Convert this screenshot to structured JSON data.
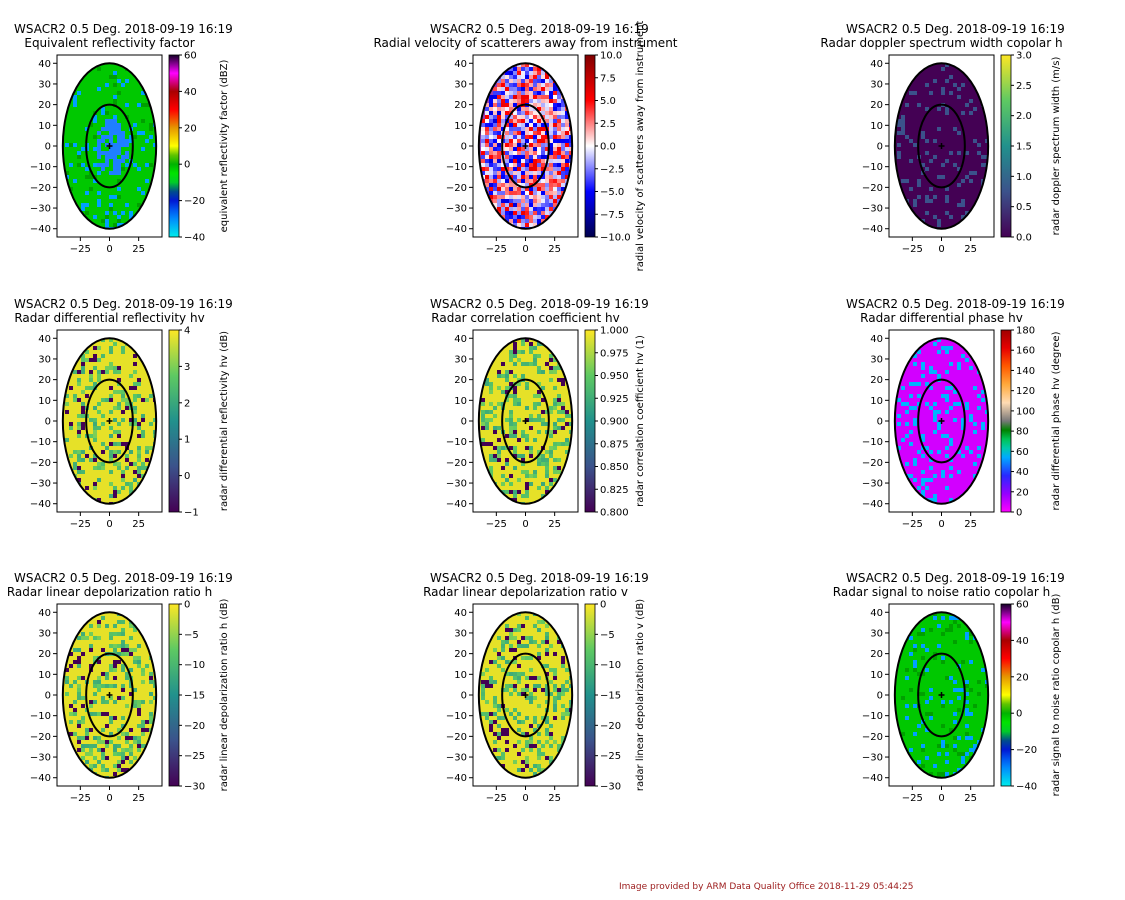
{
  "footer": {
    "credit": "Image provided by ARM Data Quality Office 2018-11-29 05:44:25"
  },
  "chart_data": [
    {
      "type": "heatmap",
      "title": "WSACR2 0.5 Deg. 2018-09-19 16:19",
      "subtitle": "Equivalent reflectivity factor",
      "xticks": [
        -25,
        0,
        25
      ],
      "yticks": [
        -40,
        -30,
        -20,
        -10,
        0,
        10,
        20,
        30,
        40
      ],
      "xlim": [
        -45,
        45
      ],
      "ylim": [
        -44,
        44
      ],
      "cbar_ticks": [
        -40,
        -20,
        0,
        20,
        40,
        60
      ],
      "cbar_range": [
        -40,
        60
      ],
      "cbar_label": "equivalent reflectivity factor (dBZ)",
      "colormap": "nws",
      "center_color": "#1f9fff",
      "field_color": "#00c800"
    },
    {
      "type": "heatmap",
      "title": "WSACR2 0.5 Deg. 2018-09-19 16:19",
      "subtitle": "Radial velocity of scatterers away from instrument",
      "xticks": [
        -25,
        0,
        25
      ],
      "yticks": [
        -40,
        -30,
        -20,
        -10,
        0,
        10,
        20,
        30,
        40
      ],
      "xlim": [
        -45,
        45
      ],
      "ylim": [
        -44,
        44
      ],
      "cbar_ticks": [
        -10.0,
        -7.5,
        -5.0,
        -2.5,
        0.0,
        2.5,
        5.0,
        7.5,
        10.0
      ],
      "cbar_range": [
        -10,
        10
      ],
      "cbar_label": "radial velocity of scatterers away from instrument",
      "colormap": "seismic"
    },
    {
      "type": "heatmap",
      "title": "WSACR2 0.5 Deg. 2018-09-19 16:19",
      "subtitle": "Radar doppler spectrum width copolar h",
      "xticks": [
        -25,
        0,
        25
      ],
      "yticks": [
        -40,
        -30,
        -20,
        -10,
        0,
        10,
        20,
        30,
        40
      ],
      "xlim": [
        -45,
        45
      ],
      "ylim": [
        -44,
        44
      ],
      "cbar_ticks": [
        0.0,
        0.5,
        1.0,
        1.5,
        2.0,
        2.5,
        3.0
      ],
      "cbar_range": [
        0,
        3
      ],
      "cbar_label": "radar doppler spectrum width (m/s)",
      "colormap": "viridis"
    },
    {
      "type": "heatmap",
      "title": "WSACR2 0.5 Deg. 2018-09-19 16:19",
      "subtitle": "Radar differential reflectivity hv",
      "xticks": [
        -25,
        0,
        25
      ],
      "yticks": [
        -40,
        -30,
        -20,
        -10,
        0,
        10,
        20,
        30,
        40
      ],
      "xlim": [
        -45,
        45
      ],
      "ylim": [
        -44,
        44
      ],
      "cbar_ticks": [
        -1,
        0,
        1,
        2,
        3,
        4
      ],
      "cbar_range": [
        -1,
        4
      ],
      "cbar_label": "radar differential reflectivity hv (dB)",
      "colormap": "viridis"
    },
    {
      "type": "heatmap",
      "title": "WSACR2 0.5 Deg. 2018-09-19 16:19",
      "subtitle": "Radar correlation coefficient hv",
      "xticks": [
        -25,
        0,
        25
      ],
      "yticks": [
        -40,
        -30,
        -20,
        -10,
        0,
        10,
        20,
        30,
        40
      ],
      "xlim": [
        -45,
        45
      ],
      "ylim": [
        -44,
        44
      ],
      "cbar_ticks": [
        0.8,
        0.825,
        0.85,
        0.875,
        0.9,
        0.925,
        0.95,
        0.975,
        1.0
      ],
      "cbar_range": [
        0.8,
        1.0
      ],
      "cbar_label": "radar correlation coefficient hv (1)",
      "colormap": "viridis"
    },
    {
      "type": "heatmap",
      "title": "WSACR2 0.5 Deg. 2018-09-19 16:19",
      "subtitle": "Radar differential phase hv",
      "xticks": [
        -25,
        0,
        25
      ],
      "yticks": [
        -40,
        -30,
        -20,
        -10,
        0,
        10,
        20,
        30,
        40
      ],
      "xlim": [
        -45,
        45
      ],
      "ylim": [
        -44,
        44
      ],
      "cbar_ticks": [
        0,
        20,
        40,
        60,
        80,
        100,
        120,
        140,
        160,
        180
      ],
      "cbar_range": [
        0,
        180
      ],
      "cbar_label": "radar differential phase hv (degree)",
      "colormap": "phase"
    },
    {
      "type": "heatmap",
      "title": "WSACR2 0.5 Deg. 2018-09-19 16:19",
      "subtitle": "Radar linear depolarization ratio h",
      "xticks": [
        -25,
        0,
        25
      ],
      "yticks": [
        -40,
        -30,
        -20,
        -10,
        0,
        10,
        20,
        30,
        40
      ],
      "xlim": [
        -45,
        45
      ],
      "ylim": [
        -44,
        44
      ],
      "cbar_ticks": [
        -30,
        -25,
        -20,
        -15,
        -10,
        -5,
        0
      ],
      "cbar_range": [
        -30,
        0
      ],
      "cbar_label": "radar linear depolarization ratio h (dB)",
      "colormap": "viridis"
    },
    {
      "type": "heatmap",
      "title": "WSACR2 0.5 Deg. 2018-09-19 16:19",
      "subtitle": "Radar linear depolarization ratio v",
      "xticks": [
        -25,
        0,
        25
      ],
      "yticks": [
        -40,
        -30,
        -20,
        -10,
        0,
        10,
        20,
        30,
        40
      ],
      "xlim": [
        -45,
        45
      ],
      "ylim": [
        -44,
        44
      ],
      "cbar_ticks": [
        -30,
        -25,
        -20,
        -15,
        -10,
        -5,
        0
      ],
      "cbar_range": [
        -30,
        0
      ],
      "cbar_label": "radar linear depolarization ratio v (dB)",
      "colormap": "viridis"
    },
    {
      "type": "heatmap",
      "title": "WSACR2 0.5 Deg. 2018-09-19 16:19",
      "subtitle": "Radar signal to noise ratio copolar h",
      "xticks": [
        -25,
        0,
        25
      ],
      "yticks": [
        -40,
        -30,
        -20,
        -10,
        0,
        10,
        20,
        30,
        40
      ],
      "xlim": [
        -45,
        45
      ],
      "ylim": [
        -44,
        44
      ],
      "cbar_ticks": [
        -40,
        -20,
        0,
        20,
        40,
        60
      ],
      "cbar_range": [
        -40,
        60
      ],
      "cbar_label": "radar signal to noise ratio copolar h (dB)",
      "colormap": "nws",
      "center_color": "#00c800",
      "field_color": "#00c800"
    }
  ]
}
